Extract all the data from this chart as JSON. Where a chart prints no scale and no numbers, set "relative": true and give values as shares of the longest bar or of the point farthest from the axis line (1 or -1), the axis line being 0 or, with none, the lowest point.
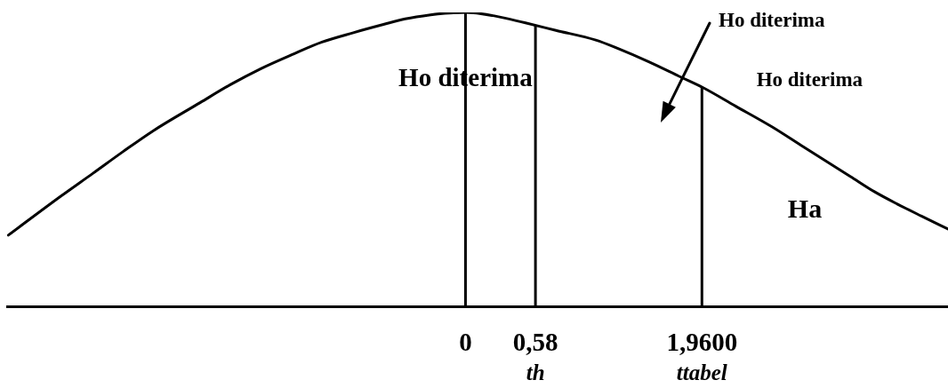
{
  "chart_data": {
    "type": "line",
    "relative": true,
    "color": "#000000",
    "marker": "none",
    "line_style": "solid",
    "tick_labels": "x",
    "x": [
      -3.79,
      -3.35,
      -3.09,
      -2.84,
      -2.59,
      -2.2,
      -1.95,
      -1.7,
      -1.44,
      -1.19,
      -0.93,
      -0.68,
      -0.5,
      -0.29,
      -0.17,
      0,
      0.23,
      0.49,
      0.75,
      1.08,
      1.26,
      1.52,
      1.78,
      1.97,
      2.24,
      2.54,
      2.8,
      3.19,
      3.39,
      3.58,
      3.78,
      4
    ],
    "values": [
      0.242,
      0.376,
      0.452,
      0.526,
      0.597,
      0.693,
      0.754,
      0.808,
      0.856,
      0.899,
      0.931,
      0.959,
      0.978,
      0.992,
      0.997,
      1,
      0.989,
      0.965,
      0.939,
      0.906,
      0.878,
      0.832,
      0.781,
      0.744,
      0.681,
      0.611,
      0.543,
      0.442,
      0.39,
      0.348,
      0.307,
      0.263
    ],
    "xlim": [
      -3.8,
      4
    ],
    "xticks": [
      0,
      {
        "value": 0.58,
        "label": "0,58"
      },
      {
        "value": 1.96,
        "label": "1,9600"
      }
    ],
    "ref_lines": [
      {
        "axis": "x",
        "value": 0,
        "color": "#000000"
      },
      {
        "axis": "x",
        "value": 0.58,
        "label": "th",
        "color": "#000000"
      },
      {
        "axis": "x",
        "value": 1.96,
        "label": "ttabel",
        "color": "#000000"
      }
    ],
    "annotations": [
      "Ho diterima",
      "Ho diterima",
      "Ho diterima",
      "Ha"
    ]
  }
}
